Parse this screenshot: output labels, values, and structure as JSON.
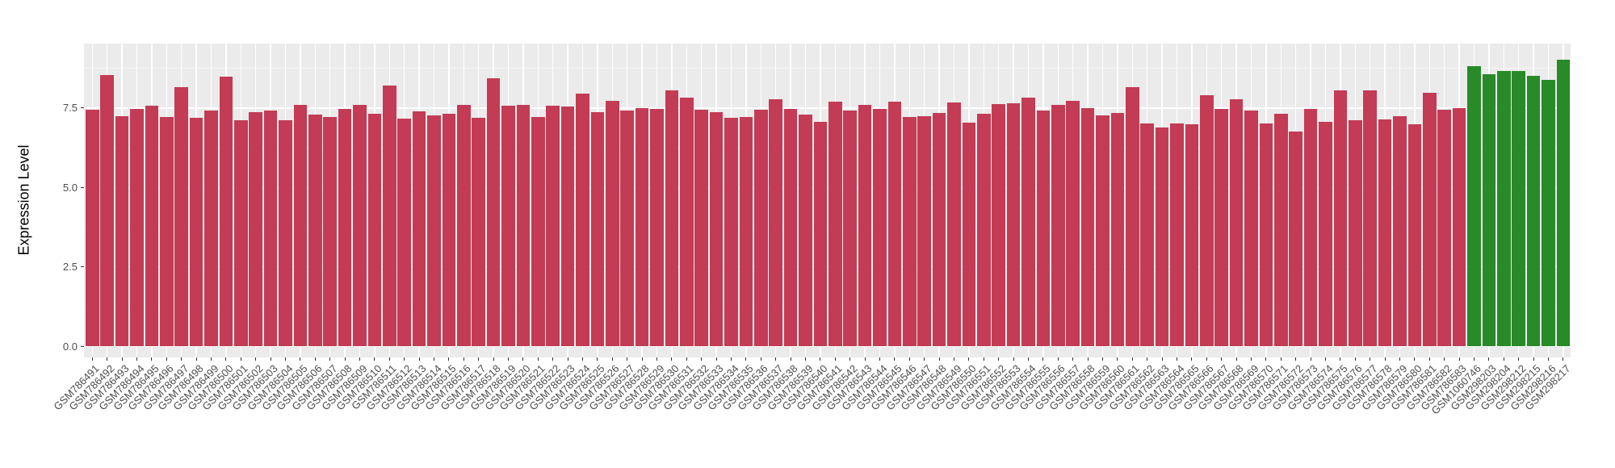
{
  "chart_data": {
    "type": "bar",
    "title": "",
    "xlabel": "",
    "ylabel": "Expression Level",
    "ylim": [
      0,
      9.53
    ],
    "y_major_ticks": [
      0,
      2.5,
      5,
      7.5
    ],
    "y_tick_labels": [
      "0.0",
      "2.5",
      "5.0",
      "7.5"
    ],
    "y_minor_ticks": [
      1.25,
      3.75,
      6.25,
      8.75
    ],
    "legend_position": "none",
    "style": {
      "panel_bg": "#EBEBEB",
      "grid_major_color": "#FFFFFF",
      "grid_minor_color": "rgba(255,255,255,0.6)",
      "tick_mark_color": "#333333"
    },
    "groups": [
      {
        "name": "red-samples",
        "color": "#C33B54",
        "from_index": 0,
        "to_index": 92
      },
      {
        "name": "green-samples",
        "color": "#288A28",
        "from_index": 93,
        "to_index": 99
      }
    ],
    "categories": [
      "GSM786491",
      "GSM786492",
      "GSM786493",
      "GSM786494",
      "GSM786495",
      "GSM786496",
      "GSM786497",
      "GSM786498",
      "GSM786499",
      "GSM786500",
      "GSM786501",
      "GSM786502",
      "GSM786503",
      "GSM786504",
      "GSM786505",
      "GSM786506",
      "GSM786507",
      "GSM786508",
      "GSM786509",
      "GSM786510",
      "GSM786511",
      "GSM786512",
      "GSM786513",
      "GSM786514",
      "GSM786515",
      "GSM786516",
      "GSM786517",
      "GSM786518",
      "GSM786519",
      "GSM786520",
      "GSM786521",
      "GSM786522",
      "GSM786523",
      "GSM786524",
      "GSM786525",
      "GSM786526",
      "GSM786527",
      "GSM786528",
      "GSM786529",
      "GSM786530",
      "GSM786531",
      "GSM786532",
      "GSM786533",
      "GSM786534",
      "GSM786535",
      "GSM786536",
      "GSM786537",
      "GSM786538",
      "GSM786539",
      "GSM786540",
      "GSM786541",
      "GSM786542",
      "GSM786543",
      "GSM786544",
      "GSM786545",
      "GSM786546",
      "GSM786547",
      "GSM786548",
      "GSM786549",
      "GSM786550",
      "GSM786551",
      "GSM786552",
      "GSM786553",
      "GSM786554",
      "GSM786555",
      "GSM786556",
      "GSM786557",
      "GSM786558",
      "GSM786559",
      "GSM786560",
      "GSM786561",
      "GSM786562",
      "GSM786563",
      "GSM786564",
      "GSM786565",
      "GSM786566",
      "GSM786567",
      "GSM786568",
      "GSM786569",
      "GSM786570",
      "GSM786571",
      "GSM786572",
      "GSM786573",
      "GSM786574",
      "GSM786575",
      "GSM786576",
      "GSM786577",
      "GSM786578",
      "GSM786579",
      "GSM786580",
      "GSM786581",
      "GSM786582",
      "GSM786583",
      "GSM1060746",
      "GSM298203",
      "GSM298204",
      "GSM298212",
      "GSM298215",
      "GSM298216",
      "GSM298217"
    ],
    "values": [
      7.45,
      8.55,
      7.24,
      7.46,
      7.57,
      7.23,
      8.17,
      7.2,
      7.41,
      8.5,
      7.12,
      7.38,
      7.41,
      7.11,
      7.6,
      7.3,
      7.22,
      7.47,
      7.6,
      7.33,
      8.21,
      7.17,
      7.4,
      7.28,
      7.33,
      7.6,
      7.2,
      8.44,
      7.57,
      7.6,
      7.21,
      7.57,
      7.55,
      7.96,
      7.36,
      7.72,
      7.43,
      7.5,
      7.47,
      8.05,
      7.84,
      7.45,
      7.37,
      7.2,
      7.23,
      7.45,
      7.77,
      7.47,
      7.29,
      7.06,
      7.7,
      7.43,
      7.59,
      7.47,
      7.71,
      7.22,
      7.25,
      7.34,
      7.68,
      7.05,
      7.32,
      7.62,
      7.65,
      7.82,
      7.41,
      7.6,
      7.72,
      7.5,
      7.26,
      7.34,
      8.15,
      7.01,
      6.88,
      7.01,
      6.98,
      7.91,
      7.47,
      7.79,
      7.43,
      7.02,
      7.32,
      6.75,
      7.47,
      7.06,
      8.05,
      7.11,
      8.06,
      7.14,
      7.24,
      6.99,
      7.98,
      7.44,
      7.5,
      8.81,
      8.57,
      8.67,
      8.67,
      8.51,
      8.4,
      9.02
    ]
  }
}
